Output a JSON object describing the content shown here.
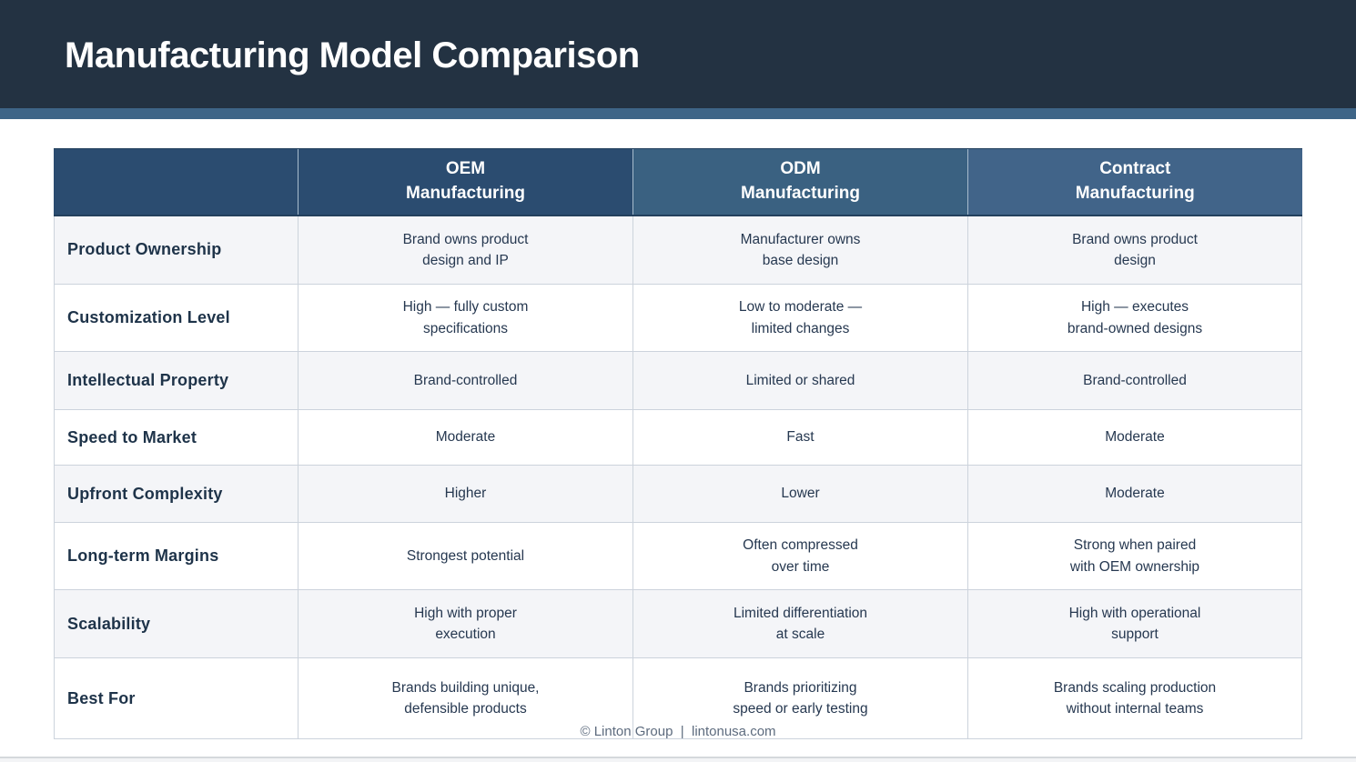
{
  "title_bar": {
    "title": "Manufacturing Model Comparison"
  },
  "table": {
    "corner_label": "",
    "columns": [
      {
        "id": "oem",
        "label": "OEM\nManufacturing"
      },
      {
        "id": "odm",
        "label": "ODM\nManufacturing"
      },
      {
        "id": "contract",
        "label": "Contract\nManufacturing"
      }
    ],
    "rows": [
      {
        "label": "Product Ownership",
        "values": [
          "Brand owns product\ndesign and IP",
          "Manufacturer owns\nbase design",
          "Brand owns product\ndesign"
        ]
      },
      {
        "label": "Customization Level",
        "values": [
          "High — fully custom\nspecifications",
          "Low to moderate —\nlimited changes",
          "High — executes\nbrand-owned designs"
        ]
      },
      {
        "label": "Intellectual Property",
        "values": [
          "Brand-controlled",
          "Limited or shared",
          "Brand-controlled"
        ]
      },
      {
        "label": "Speed to Market",
        "values": [
          "Moderate",
          "Fast",
          "Moderate"
        ]
      },
      {
        "label": "Upfront Complexity",
        "values": [
          "Higher",
          "Lower",
          "Moderate"
        ]
      },
      {
        "label": "Long-term Margins",
        "values": [
          "Strongest potential",
          "Often compressed\nover time",
          "Strong when paired\nwith OEM ownership"
        ]
      },
      {
        "label": "Scalability",
        "values": [
          "High with proper\nexecution",
          "Limited differentiation\nat scale",
          "High with operational\nsupport"
        ]
      },
      {
        "label": "Best For",
        "values": [
          "Brands building unique,\ndefensible products",
          "Brands prioritizing\nspeed or early testing",
          "Brands scaling production\nwithout internal teams"
        ]
      }
    ]
  },
  "footer": {
    "credit": "© Linton Group  |  lintonusa.com"
  },
  "colors": {
    "title_bar_bg": "#233242",
    "accent_strip": "#3e6587",
    "header_dark_cell": "#2b4c70",
    "header_odm_cell": "#3a6181",
    "header_contract_cell": "#416489",
    "row_alt_bg": "#f4f5f8",
    "table_border": "#ccd3dc",
    "label_text": "#1e3349",
    "value_text": "#263850",
    "footer_text": "#5d6b7e"
  }
}
